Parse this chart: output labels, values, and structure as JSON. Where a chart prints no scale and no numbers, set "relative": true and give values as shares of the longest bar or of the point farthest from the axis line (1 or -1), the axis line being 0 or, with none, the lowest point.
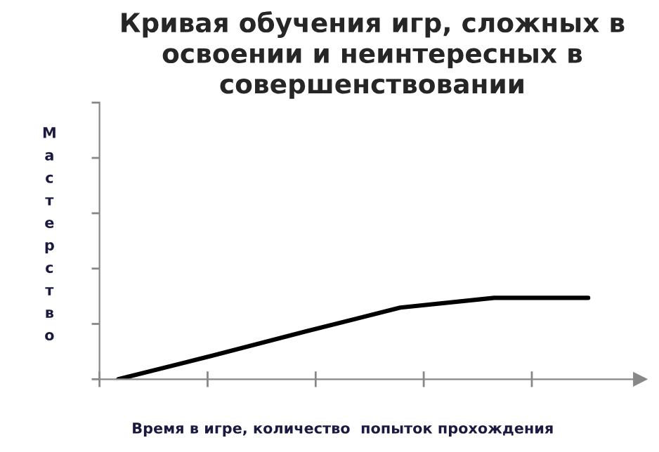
{
  "chart_data": {
    "type": "line",
    "title": "Кривая обучения игр, сложных в освоении и неинтересных в совершенствовании",
    "xlabel": "Время в игре, количество  попыток прохождения",
    "ylabel": "Мастерство",
    "relative": true,
    "categories": [
      null,
      null,
      null,
      null,
      null,
      null
    ],
    "series": [
      {
        "color": "#000000",
        "values": [
          0,
          0.29,
          0.59,
          0.88,
          1,
          1
        ]
      }
    ],
    "grid": false,
    "legend": false,
    "marker": "none",
    "line_style": "solid"
  }
}
